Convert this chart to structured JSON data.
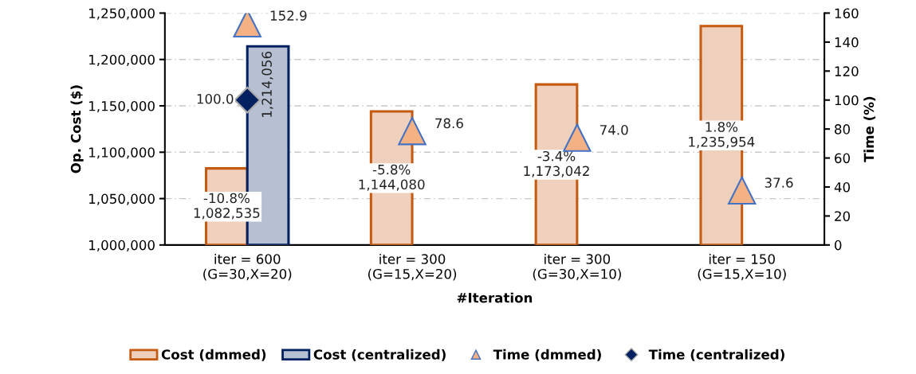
{
  "chart_data": {
    "type": "bar",
    "xlabel": "#Iteration",
    "ylabel": "Op. Cost ($)",
    "y2label": "Time (%)",
    "categories": [
      "iter = 600\n(G=30,X=20)",
      "iter = 300\n(G=15,X=20)",
      "iter = 300\n(G=30,X=10)",
      "iter = 150\n(G=15,X=10)"
    ],
    "series": [
      {
        "name": "Cost (dmmed)",
        "color": "#c55a11",
        "values": [
          1082535,
          1144080,
          1173042,
          1235954
        ],
        "value_labels": [
          "-10.8%\n1,082,535",
          "-5.8%\n1,144,080",
          "-3.4%\n1,173,042",
          "1.8%\n1,235,954"
        ]
      },
      {
        "name": "Cost (centralized)",
        "color": "#002060",
        "values": [
          1214056,
          null,
          null,
          null
        ],
        "value_labels": [
          "1,214,056",
          null,
          null,
          null
        ]
      },
      {
        "name": "Time (dmmed)",
        "type": "scatter",
        "axis": "y2",
        "marker": "triangle",
        "color": "#f4b183",
        "values": [
          152.9,
          78.6,
          74.0,
          37.6
        ],
        "value_labels": [
          "152.9",
          "78.6",
          "74.0",
          "37.6"
        ]
      },
      {
        "name": "Time (centralized)",
        "type": "scatter",
        "axis": "y2",
        "marker": "diamond",
        "color": "#002060",
        "values": [
          100.0,
          null,
          null,
          null
        ],
        "value_labels": [
          "100.0",
          null,
          null,
          null
        ]
      }
    ],
    "ylim": [
      1000000,
      1250000
    ],
    "yticks": [
      {
        "value": 1000000,
        "label": "1,000,000"
      },
      {
        "value": 1050000,
        "label": "1,050,000"
      },
      {
        "value": 1100000,
        "label": "1,100,000"
      },
      {
        "value": 1150000,
        "label": "1,150,000"
      },
      {
        "value": 1200000,
        "label": "1,200,000"
      },
      {
        "value": 1250000,
        "label": "1,250,000"
      }
    ],
    "y2lim": [
      0,
      160
    ],
    "y2ticks": [
      0,
      20,
      40,
      60,
      80,
      100,
      120,
      140,
      160
    ],
    "grid": true,
    "legend": "bottom"
  }
}
